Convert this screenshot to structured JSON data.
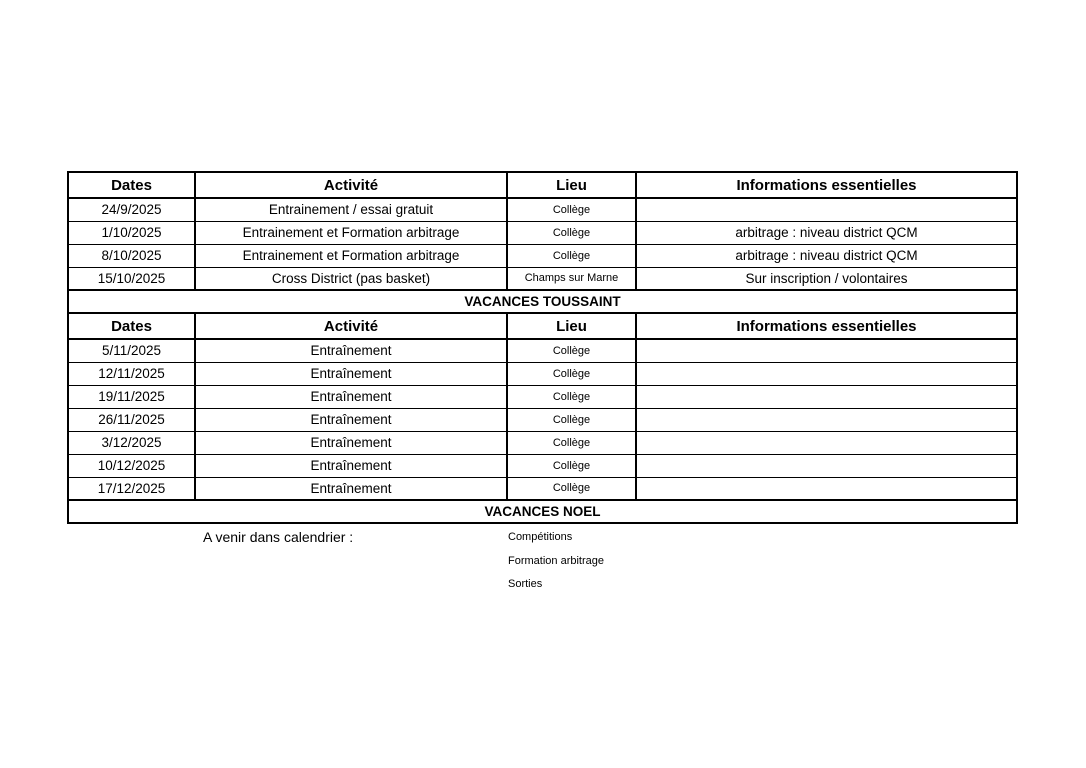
{
  "colors": {
    "background": "#ffffff",
    "text": "#000000",
    "border": "#000000"
  },
  "table": {
    "headers": [
      "Dates",
      "Activité",
      "Lieu",
      "Informations essentielles"
    ],
    "section1": {
      "rows": [
        {
          "date": "24/9/2025",
          "activity": "Entrainement / essai gratuit",
          "location": "Collège",
          "info": ""
        },
        {
          "date": "1/10/2025",
          "activity": "Entrainement et Formation arbitrage",
          "location": "Collège",
          "info": "arbitrage : niveau district QCM"
        },
        {
          "date": "8/10/2025",
          "activity": "Entrainement et Formation arbitrage",
          "location": "Collège",
          "info": "arbitrage : niveau district QCM"
        },
        {
          "date": "15/10/2025",
          "activity": "Cross District (pas basket)",
          "location": "Champs sur Marne",
          "info": "Sur inscription / volontaires"
        }
      ],
      "banner": "VACANCES TOUSSAINT"
    },
    "section2": {
      "rows": [
        {
          "date": "5/11/2025",
          "activity": "Entraînement",
          "location": "Collège",
          "info": ""
        },
        {
          "date": "12/11/2025",
          "activity": "Entraînement",
          "location": "Collège",
          "info": ""
        },
        {
          "date": "19/11/2025",
          "activity": "Entraînement",
          "location": "Collège",
          "info": ""
        },
        {
          "date": "26/11/2025",
          "activity": "Entraînement",
          "location": "Collège",
          "info": ""
        },
        {
          "date": "3/12/2025",
          "activity": "Entraînement",
          "location": "Collège",
          "info": ""
        },
        {
          "date": "10/12/2025",
          "activity": "Entraînement",
          "location": "Collège",
          "info": ""
        },
        {
          "date": "17/12/2025",
          "activity": "Entraînement",
          "location": "Collège",
          "info": ""
        }
      ],
      "banner": "VACANCES NOEL"
    }
  },
  "footnote": {
    "label": "A venir dans calendrier :",
    "items": [
      "Compétitions",
      "Formation arbitrage",
      "Sorties"
    ]
  }
}
